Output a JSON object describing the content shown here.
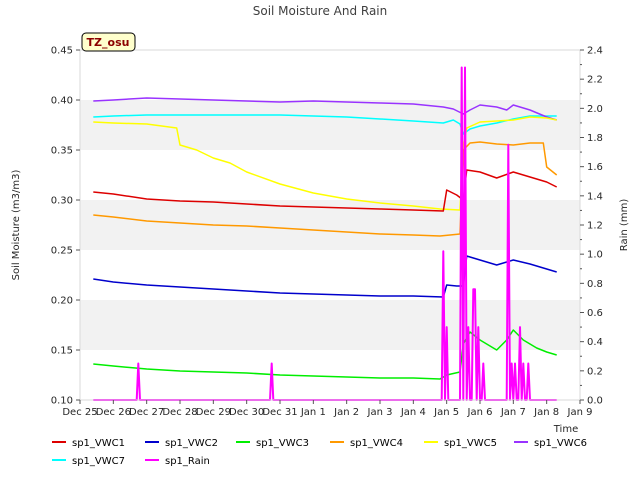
{
  "chart_data": {
    "type": "line",
    "title": "Soil Moisture And Rain",
    "site_label": "TZ_osu",
    "xlabel": "Time",
    "ylabel": "Soil Moisture (m3/m3)",
    "y2label": "Rain (mm)",
    "xlim": [
      0,
      15
    ],
    "ylim": [
      0.1,
      0.45
    ],
    "y2lim": [
      0.0,
      2.4
    ],
    "x_ticks": [
      {
        "x": 0,
        "label": "Dec 25"
      },
      {
        "x": 1,
        "label": "Dec 26"
      },
      {
        "x": 2,
        "label": "Dec 27"
      },
      {
        "x": 3,
        "label": "Dec 28"
      },
      {
        "x": 4,
        "label": "Dec 29"
      },
      {
        "x": 5,
        "label": "Dec 30"
      },
      {
        "x": 6,
        "label": "Dec 31"
      },
      {
        "x": 7,
        "label": "Jan 1"
      },
      {
        "x": 8,
        "label": "Jan 2"
      },
      {
        "x": 9,
        "label": "Jan 3"
      },
      {
        "x": 10,
        "label": "Jan 4"
      },
      {
        "x": 11,
        "label": "Jan 5"
      },
      {
        "x": 12,
        "label": "Jan 6"
      },
      {
        "x": 13,
        "label": "Jan 7"
      },
      {
        "x": 14,
        "label": "Jan 8"
      },
      {
        "x": 15,
        "label": "Jan 9"
      }
    ],
    "y_ticks": [
      "0.10",
      "0.15",
      "0.20",
      "0.25",
      "0.30",
      "0.35",
      "0.40",
      "0.45"
    ],
    "y2_ticks": [
      "0.0",
      "0.2",
      "0.4",
      "0.6",
      "0.8",
      "1.0",
      "1.2",
      "1.4",
      "1.6",
      "1.8",
      "2.0",
      "2.2",
      "2.4"
    ],
    "grid_bands": true,
    "legend_position": "bottom",
    "series": [
      {
        "name": "sp1_VWC1",
        "color": "#dd0000",
        "axis": "left",
        "x": [
          0.4,
          1.0,
          2.0,
          3.0,
          4.0,
          5.0,
          6.0,
          7.0,
          8.0,
          9.0,
          10.0,
          10.9,
          11.0,
          11.3,
          11.5,
          11.6,
          12.0,
          12.5,
          13.0,
          13.5,
          14.0,
          14.3
        ],
        "y": [
          0.308,
          0.306,
          0.301,
          0.299,
          0.298,
          0.296,
          0.294,
          0.293,
          0.292,
          0.291,
          0.29,
          0.289,
          0.31,
          0.305,
          0.3,
          0.33,
          0.328,
          0.322,
          0.328,
          0.323,
          0.318,
          0.313
        ]
      },
      {
        "name": "sp1_VWC2",
        "color": "#0000cc",
        "axis": "left",
        "x": [
          0.4,
          1.0,
          2.0,
          3.0,
          4.0,
          5.0,
          6.0,
          7.0,
          8.0,
          9.0,
          10.0,
          10.9,
          11.0,
          11.3,
          11.5,
          11.6,
          12.0,
          12.5,
          13.0,
          13.5,
          14.0,
          14.3
        ],
        "y": [
          0.221,
          0.218,
          0.215,
          0.213,
          0.211,
          0.209,
          0.207,
          0.206,
          0.205,
          0.204,
          0.204,
          0.203,
          0.215,
          0.214,
          0.214,
          0.244,
          0.24,
          0.235,
          0.24,
          0.236,
          0.231,
          0.228
        ]
      },
      {
        "name": "sp1_VWC3",
        "color": "#00ee00",
        "axis": "left",
        "x": [
          0.4,
          1.0,
          2.0,
          3.0,
          4.0,
          5.0,
          6.0,
          7.0,
          8.0,
          9.0,
          10.0,
          10.8,
          11.0,
          11.4,
          11.5,
          11.7,
          12.0,
          12.5,
          12.8,
          13.0,
          13.3,
          13.7,
          14.0,
          14.3
        ],
        "y": [
          0.136,
          0.134,
          0.131,
          0.129,
          0.128,
          0.127,
          0.125,
          0.124,
          0.123,
          0.122,
          0.122,
          0.121,
          0.125,
          0.128,
          0.156,
          0.168,
          0.16,
          0.15,
          0.16,
          0.17,
          0.16,
          0.152,
          0.148,
          0.145
        ]
      },
      {
        "name": "sp1_VWC4",
        "color": "#ff9900",
        "axis": "left",
        "x": [
          0.4,
          1.0,
          2.0,
          3.0,
          4.0,
          5.0,
          6.0,
          7.0,
          8.0,
          9.0,
          10.0,
          10.8,
          11.4,
          11.5,
          11.7,
          12.0,
          12.5,
          13.0,
          13.5,
          13.9,
          14.0,
          14.3
        ],
        "y": [
          0.285,
          0.283,
          0.279,
          0.277,
          0.275,
          0.274,
          0.272,
          0.27,
          0.268,
          0.266,
          0.265,
          0.264,
          0.266,
          0.35,
          0.357,
          0.358,
          0.356,
          0.355,
          0.357,
          0.357,
          0.333,
          0.325
        ]
      },
      {
        "name": "sp1_VWC5",
        "color": "#ffff00",
        "axis": "left",
        "x": [
          0.4,
          1.0,
          2.0,
          2.9,
          3.0,
          3.5,
          4.0,
          4.5,
          5.0,
          6.0,
          7.0,
          8.0,
          9.0,
          10.0,
          10.8,
          11.4,
          11.5,
          11.6,
          12.0,
          12.5,
          13.0,
          13.5,
          14.0,
          14.3
        ],
        "y": [
          0.378,
          0.377,
          0.376,
          0.372,
          0.355,
          0.35,
          0.342,
          0.337,
          0.328,
          0.316,
          0.307,
          0.301,
          0.297,
          0.294,
          0.291,
          0.29,
          0.355,
          0.372,
          0.378,
          0.379,
          0.38,
          0.383,
          0.382,
          0.38
        ]
      },
      {
        "name": "sp1_VWC6",
        "color": "#9933ff",
        "axis": "left",
        "x": [
          0.4,
          1.0,
          2.0,
          3.0,
          4.0,
          5.0,
          6.0,
          7.0,
          8.0,
          9.0,
          10.0,
          10.9,
          11.2,
          11.5,
          11.7,
          12.0,
          12.5,
          12.8,
          13.0,
          13.5,
          14.0,
          14.3
        ],
        "y": [
          0.399,
          0.4,
          0.402,
          0.401,
          0.4,
          0.399,
          0.398,
          0.399,
          0.398,
          0.397,
          0.396,
          0.393,
          0.391,
          0.386,
          0.39,
          0.395,
          0.393,
          0.39,
          0.395,
          0.39,
          0.383,
          0.38
        ]
      },
      {
        "name": "sp1_VWC7",
        "color": "#00ffff",
        "axis": "left",
        "x": [
          0.4,
          1.0,
          2.0,
          3.0,
          4.0,
          5.0,
          6.0,
          7.0,
          8.0,
          9.0,
          10.0,
          10.9,
          11.2,
          11.4,
          11.5,
          11.7,
          12.0,
          12.5,
          13.0,
          13.5,
          14.0,
          14.3
        ],
        "y": [
          0.383,
          0.384,
          0.385,
          0.385,
          0.385,
          0.385,
          0.385,
          0.384,
          0.383,
          0.381,
          0.379,
          0.377,
          0.38,
          0.376,
          0.366,
          0.371,
          0.374,
          0.377,
          0.381,
          0.384,
          0.384,
          0.384
        ]
      },
      {
        "name": "sp1_Rain",
        "color": "#ff00ff",
        "axis": "right",
        "x": [
          0.4,
          1.7,
          1.75,
          1.8,
          5.7,
          5.75,
          5.8,
          10.85,
          10.9,
          10.95,
          11.0,
          11.05,
          11.1,
          11.4,
          11.45,
          11.5,
          11.55,
          11.6,
          11.65,
          11.7,
          11.75,
          11.8,
          11.85,
          11.9,
          11.95,
          12.0,
          12.05,
          12.1,
          12.15,
          12.2,
          12.8,
          12.85,
          12.9,
          12.95,
          13.0,
          13.05,
          13.1,
          13.15,
          13.2,
          13.25,
          13.3,
          13.35,
          13.4,
          13.45,
          13.5,
          13.55,
          13.6,
          14.3
        ],
        "y": [
          0,
          0,
          0.25,
          0,
          0,
          0.25,
          0,
          0,
          1.02,
          0,
          0.5,
          0,
          0,
          0,
          2.28,
          0,
          2.28,
          0,
          0.5,
          0,
          0,
          0.76,
          0.76,
          0,
          0.5,
          0,
          0,
          0.25,
          0,
          0,
          0,
          1.75,
          0,
          0.25,
          0,
          0.25,
          0,
          0,
          0.5,
          0,
          0.25,
          0,
          0,
          0.25,
          0,
          0,
          0,
          0
        ]
      }
    ]
  }
}
